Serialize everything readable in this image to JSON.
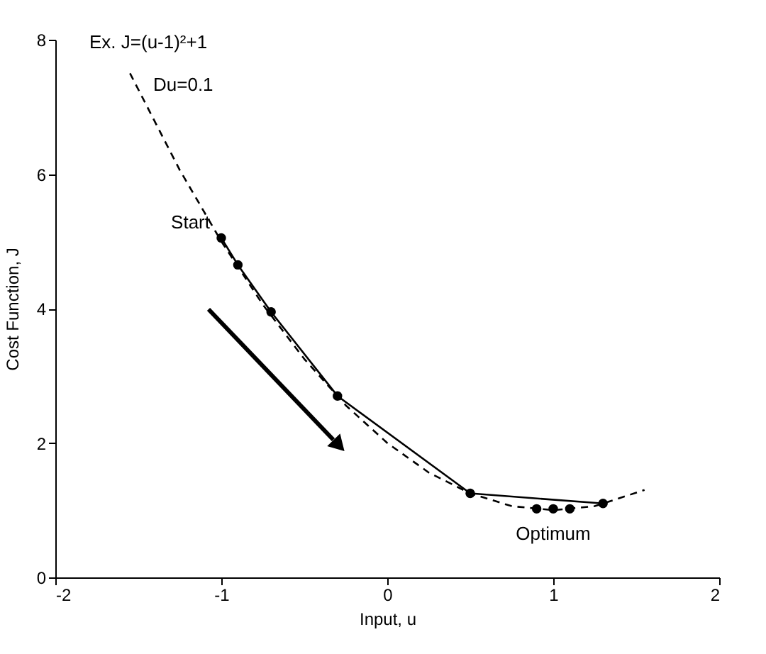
{
  "chart_data": {
    "type": "line",
    "xlabel": "Input, u",
    "ylabel": "Cost Function, J",
    "xlim": [
      -2,
      2
    ],
    "xticks": [
      -2,
      -1,
      0,
      1,
      2
    ],
    "ylim": [
      0,
      8
    ],
    "yticks": [
      0,
      2,
      4,
      6,
      8
    ],
    "grid": false,
    "series": [
      {
        "color": "#000000",
        "line_style": "dashed",
        "marker": "none",
        "x": [
          -1.55,
          -1.25,
          -1,
          -0.75,
          -0.5,
          -0.25,
          0,
          0.25,
          0.5,
          0.75,
          1,
          1.25,
          1.55
        ],
        "values": [
          7.5,
          6.06,
          5,
          4.06,
          3.25,
          2.56,
          2,
          1.56,
          1.25,
          1.06,
          1,
          1.06,
          1.3
        ]
      },
      {
        "color": "#000000",
        "line_style": "solid",
        "marker": "circle",
        "x": [
          -1,
          -0.9,
          -0.7,
          -0.3,
          0.5,
          1.3
        ],
        "values": [
          5.05,
          4.65,
          3.95,
          2.7,
          1.25,
          1.1
        ]
      },
      {
        "type": "scatter",
        "color": "#000000",
        "marker": "circle",
        "x": [
          0.9,
          1.0,
          1.1
        ],
        "values": [
          1.02,
          1.02,
          1.02
        ]
      }
    ],
    "annotations": [
      "Ex. J=(u-1)²+1",
      "Du=0.1",
      {
        "text": "Start",
        "x": -1,
        "y": 5.05
      },
      {
        "text": "Optimum",
        "x": 1,
        "y": 1.02
      }
    ]
  }
}
